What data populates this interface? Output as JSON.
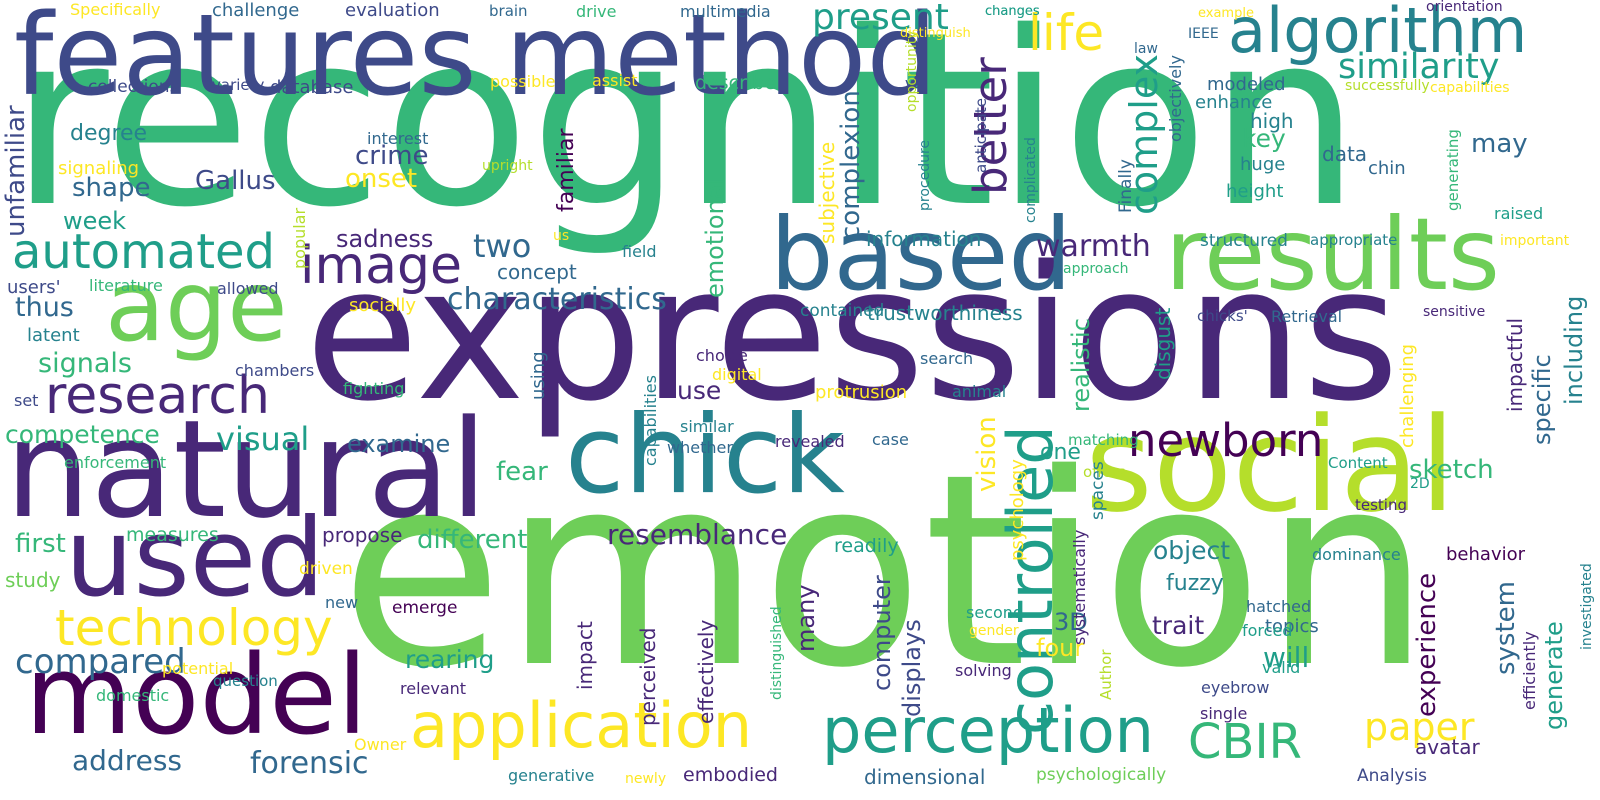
{
  "palette": {
    "purple": "#440154",
    "indigo": "#482878",
    "blue": "#3e4a89",
    "slate": "#31688e",
    "teal": "#26828e",
    "sea": "#1f9e89",
    "green": "#35b779",
    "lime": "#6ece58",
    "yellowgreen": "#b5de2b",
    "yellow": "#fde725"
  },
  "words": [
    {
      "text": "recognition",
      "color": "green"
    },
    {
      "text": "expressions",
      "color": "indigo"
    },
    {
      "text": "emotion",
      "color": "lime"
    },
    {
      "text": "features",
      "color": "blue"
    },
    {
      "text": "method",
      "color": "blue"
    },
    {
      "text": "natural",
      "color": "indigo"
    },
    {
      "text": "social",
      "color": "yellowgreen"
    },
    {
      "text": "chick",
      "color": "teal"
    },
    {
      "text": "based",
      "color": "slate"
    },
    {
      "text": "results",
      "color": "lime"
    },
    {
      "text": "age",
      "color": "lime"
    },
    {
      "text": "used",
      "color": "indigo"
    },
    {
      "text": "model",
      "color": "purple"
    },
    {
      "text": "algorithm",
      "color": "teal"
    },
    {
      "text": "controlled",
      "color": "sea"
    },
    {
      "text": "perception",
      "color": "sea"
    },
    {
      "text": "application",
      "color": "yellow"
    },
    {
      "text": "image",
      "color": "indigo"
    },
    {
      "text": "research",
      "color": "indigo"
    },
    {
      "text": "automated",
      "color": "sea"
    },
    {
      "text": "technology",
      "color": "yellow"
    },
    {
      "text": "newborn",
      "color": "purple"
    },
    {
      "text": "CBIR",
      "color": "green"
    },
    {
      "text": "life",
      "color": "yellow"
    },
    {
      "text": "present",
      "color": "sea"
    },
    {
      "text": "similarity",
      "color": "sea"
    },
    {
      "text": "compared",
      "color": "slate"
    },
    {
      "text": "better",
      "color": "indigo"
    },
    {
      "text": "complex",
      "color": "sea"
    },
    {
      "text": "characteristics",
      "color": "slate"
    },
    {
      "text": "resemblance",
      "color": "indigo"
    },
    {
      "text": "paper",
      "color": "yellow"
    },
    {
      "text": "forensic",
      "color": "slate"
    },
    {
      "text": "address",
      "color": "slate"
    },
    {
      "text": "visual",
      "color": "sea"
    },
    {
      "text": "warmth",
      "color": "indigo"
    },
    {
      "text": "two",
      "color": "slate"
    },
    {
      "text": "emotional",
      "color": "green"
    },
    {
      "text": "complexion",
      "color": "slate"
    },
    {
      "text": "sadness",
      "color": "indigo"
    },
    {
      "text": "crime",
      "color": "blue"
    },
    {
      "text": "Gallus",
      "color": "blue"
    },
    {
      "text": "shape",
      "color": "slate"
    },
    {
      "text": "degree",
      "color": "teal"
    },
    {
      "text": "unfamiliar",
      "color": "blue"
    },
    {
      "text": "week",
      "color": "sea"
    },
    {
      "text": "onset",
      "color": "yellow"
    },
    {
      "text": "familiar",
      "color": "purple"
    },
    {
      "text": "key",
      "color": "green"
    },
    {
      "text": "may",
      "color": "slate"
    },
    {
      "text": "data",
      "color": "slate"
    },
    {
      "text": "chin",
      "color": "slate"
    },
    {
      "text": "huge",
      "color": "teal"
    },
    {
      "text": "height",
      "color": "sea"
    },
    {
      "text": "enhance",
      "color": "teal"
    },
    {
      "text": "modeled",
      "color": "slate"
    },
    {
      "text": "high",
      "color": "teal"
    },
    {
      "text": "thus",
      "color": "slate"
    },
    {
      "text": "signals",
      "color": "green"
    },
    {
      "text": "competence",
      "color": "green"
    },
    {
      "text": "first",
      "color": "green"
    },
    {
      "text": "study",
      "color": "lime"
    },
    {
      "text": "measures",
      "color": "green"
    },
    {
      "text": "different",
      "color": "green"
    },
    {
      "text": "propose",
      "color": "indigo"
    },
    {
      "text": "examine",
      "color": "slate"
    },
    {
      "text": "fear",
      "color": "green"
    },
    {
      "text": "use",
      "color": "indigo"
    },
    {
      "text": "concept",
      "color": "slate"
    },
    {
      "text": "information",
      "color": "teal"
    },
    {
      "text": "trustworthiness",
      "color": "teal"
    },
    {
      "text": "contained",
      "color": "teal"
    },
    {
      "text": "disgust",
      "color": "sea"
    },
    {
      "text": "realistic",
      "color": "green"
    },
    {
      "text": "one",
      "color": "sea"
    },
    {
      "text": "object",
      "color": "teal"
    },
    {
      "text": "fuzzy",
      "color": "teal"
    },
    {
      "text": "trait",
      "color": "indigo"
    },
    {
      "text": "will",
      "color": "sea"
    },
    {
      "text": "topics",
      "color": "slate"
    },
    {
      "text": "3D",
      "color": "slate"
    },
    {
      "text": "four",
      "color": "yellow"
    },
    {
      "text": "displays",
      "color": "blue"
    },
    {
      "text": "computer",
      "color": "blue"
    },
    {
      "text": "many",
      "color": "indigo"
    },
    {
      "text": "rearing",
      "color": "sea"
    },
    {
      "text": "vision",
      "color": "yellow"
    },
    {
      "text": "psychology",
      "color": "yellow"
    },
    {
      "text": "sketch",
      "color": "green"
    },
    {
      "text": "specific",
      "color": "slate"
    },
    {
      "text": "including",
      "color": "teal"
    },
    {
      "text": "impactful",
      "color": "indigo"
    },
    {
      "text": "challenging",
      "color": "yellow"
    },
    {
      "text": "experience",
      "color": "purple"
    },
    {
      "text": "system",
      "color": "slate"
    },
    {
      "text": "generate",
      "color": "sea"
    },
    {
      "text": "avatar",
      "color": "indigo"
    },
    {
      "text": "behavior",
      "color": "purple"
    },
    {
      "text": "dominance",
      "color": "teal"
    },
    {
      "text": "digital",
      "color": "yellow"
    },
    {
      "text": "protrusion",
      "color": "yellow"
    },
    {
      "text": "choice",
      "color": "indigo"
    },
    {
      "text": "similar",
      "color": "teal"
    },
    {
      "text": "whether",
      "color": "slate"
    },
    {
      "text": "revealed",
      "color": "indigo"
    },
    {
      "text": "case",
      "color": "slate"
    },
    {
      "text": "readily",
      "color": "sea"
    },
    {
      "text": "subjective",
      "color": "yellow"
    },
    {
      "text": "embodied",
      "color": "indigo"
    },
    {
      "text": "dimensional",
      "color": "slate"
    },
    {
      "text": "psychologically",
      "color": "lime"
    },
    {
      "text": "generative",
      "color": "teal"
    },
    {
      "text": "newly",
      "color": "yellow"
    },
    {
      "text": "Analysis",
      "color": "blue"
    },
    {
      "text": "Owner",
      "color": "yellow"
    },
    {
      "text": "single",
      "color": "indigo"
    },
    {
      "text": "eyebrow",
      "color": "blue"
    },
    {
      "text": "valid",
      "color": "sea"
    },
    {
      "text": "solving",
      "color": "indigo"
    },
    {
      "text": "hatched",
      "color": "slate"
    },
    {
      "text": "forced",
      "color": "sea"
    },
    {
      "text": "second",
      "color": "sea"
    },
    {
      "text": "gender",
      "color": "yellow"
    },
    {
      "text": "emerge",
      "color": "purple"
    },
    {
      "text": "relevant",
      "color": "indigo"
    },
    {
      "text": "impact",
      "color": "indigo"
    },
    {
      "text": "perceived",
      "color": "indigo"
    },
    {
      "text": "effectively",
      "color": "indigo"
    },
    {
      "text": "distinguished",
      "color": "green"
    },
    {
      "text": "question",
      "color": "teal"
    },
    {
      "text": "potential",
      "color": "yellow"
    },
    {
      "text": "domestic",
      "color": "green"
    },
    {
      "text": "new",
      "color": "slate"
    },
    {
      "text": "driven",
      "color": "yellow"
    },
    {
      "text": "enforcement",
      "color": "green"
    },
    {
      "text": "set",
      "color": "blue"
    },
    {
      "text": "latent",
      "color": "teal"
    },
    {
      "text": "users'",
      "color": "blue"
    },
    {
      "text": "literature",
      "color": "green"
    },
    {
      "text": "allowed",
      "color": "blue"
    },
    {
      "text": "socially",
      "color": "yellow"
    },
    {
      "text": "chambers",
      "color": "blue"
    },
    {
      "text": "fighting",
      "color": "green"
    },
    {
      "text": "using",
      "color": "slate"
    },
    {
      "text": "capabilities",
      "color": "teal"
    },
    {
      "text": "field",
      "color": "teal"
    },
    {
      "text": "us",
      "color": "yellow"
    },
    {
      "text": "popular",
      "color": "yellowgreen"
    },
    {
      "text": "upright",
      "color": "yellowgreen"
    },
    {
      "text": "interest",
      "color": "slate"
    },
    {
      "text": "signaling",
      "color": "yellow"
    },
    {
      "text": "collections",
      "color": "blue"
    },
    {
      "text": "variety",
      "color": "blue"
    },
    {
      "text": "database",
      "color": "blue"
    },
    {
      "text": "possible",
      "color": "yellow"
    },
    {
      "text": "assist",
      "color": "yellow"
    },
    {
      "text": "describe",
      "color": "green"
    },
    {
      "text": "vs",
      "color": "blue"
    },
    {
      "text": "opportunity",
      "color": "yellowgreen"
    },
    {
      "text": "procedure",
      "color": "teal"
    },
    {
      "text": "anticipate",
      "color": "blue"
    },
    {
      "text": "complicated",
      "color": "teal"
    },
    {
      "text": "Finally",
      "color": "slate"
    },
    {
      "text": "objectively",
      "color": "slate"
    },
    {
      "text": "law",
      "color": "slate"
    },
    {
      "text": "IEEE",
      "color": "slate"
    },
    {
      "text": "successfully",
      "color": "yellowgreen"
    },
    {
      "text": "capabilities",
      "color": "yellow"
    },
    {
      "text": "generating",
      "color": "green"
    },
    {
      "text": "raised",
      "color": "sea"
    },
    {
      "text": "appropriate",
      "color": "teal"
    },
    {
      "text": "important",
      "color": "yellow"
    },
    {
      "text": "structured",
      "color": "teal"
    },
    {
      "text": "approach",
      "color": "green"
    },
    {
      "text": "chicks'",
      "color": "blue"
    },
    {
      "text": "Retrieval",
      "color": "slate"
    },
    {
      "text": "sensitive",
      "color": "indigo"
    },
    {
      "text": "search",
      "color": "slate"
    },
    {
      "text": "animal",
      "color": "teal"
    },
    {
      "text": "matching",
      "color": "green"
    },
    {
      "text": "offers",
      "color": "yellowgreen"
    },
    {
      "text": "Content",
      "color": "sea"
    },
    {
      "text": "2D",
      "color": "sea"
    },
    {
      "text": "testing",
      "color": "indigo"
    },
    {
      "text": "spaces",
      "color": "teal"
    },
    {
      "text": "systematically",
      "color": "indigo"
    },
    {
      "text": "Author",
      "color": "yellowgreen"
    },
    {
      "text": "efficiently",
      "color": "indigo"
    },
    {
      "text": "investigated",
      "color": "teal"
    },
    {
      "text": "Specifically",
      "color": "yellow"
    },
    {
      "text": "challenge",
      "color": "slate"
    },
    {
      "text": "evaluation",
      "color": "blue"
    },
    {
      "text": "brain",
      "color": "slate"
    },
    {
      "text": "drive",
      "color": "green"
    },
    {
      "text": "multimedia",
      "color": "slate"
    },
    {
      "text": "changes",
      "color": "sea"
    },
    {
      "text": "distinguish",
      "color": "yellow"
    },
    {
      "text": "example",
      "color": "yellow"
    },
    {
      "text": "orientation",
      "color": "indigo"
    },
    {
      "text": "changes",
      "color": "sea"
    }
  ]
}
